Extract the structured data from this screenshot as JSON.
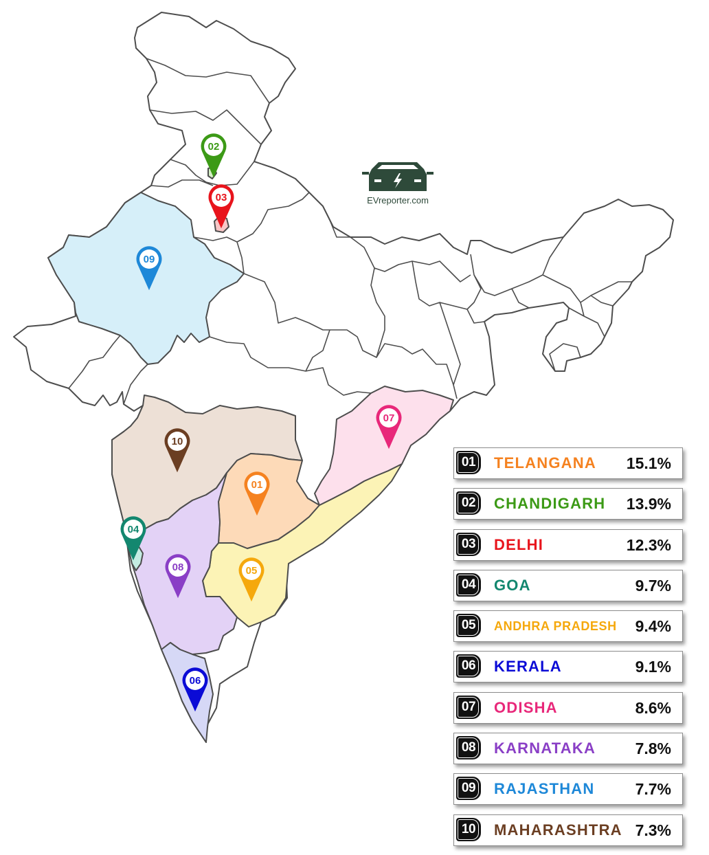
{
  "logo": {
    "text": "EVreporter.com"
  },
  "rankings": [
    {
      "rank": "01",
      "state": "TELANGANA",
      "share": "15.1%",
      "share_value": 15.1,
      "color": "#f58220"
    },
    {
      "rank": "02",
      "state": "CHANDIGARH",
      "share": "13.9%",
      "share_value": 13.9,
      "color": "#3c9a16"
    },
    {
      "rank": "03",
      "state": "DELHI",
      "share": "12.3%",
      "share_value": 12.3,
      "color": "#e8141c"
    },
    {
      "rank": "04",
      "state": "GOA",
      "share": "9.7%",
      "share_value": 9.7,
      "color": "#13876f"
    },
    {
      "rank": "05",
      "state": "ANDHRA PRADESH",
      "share": "9.4%",
      "share_value": 9.4,
      "color": "#f5a80c"
    },
    {
      "rank": "06",
      "state": "KERALA",
      "share": "9.1%",
      "share_value": 9.1,
      "color": "#0b0bd6"
    },
    {
      "rank": "07",
      "state": "ODISHA",
      "share": "8.6%",
      "share_value": 8.6,
      "color": "#e8287a"
    },
    {
      "rank": "08",
      "state": "KARNATAKA",
      "share": "7.8%",
      "share_value": 7.8,
      "color": "#8a3fc6"
    },
    {
      "rank": "09",
      "state": "RAJASTHAN",
      "share": "7.7%",
      "share_value": 7.7,
      "color": "#1e88d8"
    },
    {
      "rank": "10",
      "state": "MAHARASHTRA",
      "share": "7.3%",
      "share_value": 7.3,
      "color": "#6b3e22"
    }
  ],
  "region_fills": {
    "01": "#fddab8",
    "02": "#d5efc6",
    "03": "#f8c6c6",
    "04": "#c4ece2",
    "05": "#fcf3b6",
    "06": "#d6d8f6",
    "07": "#fde0ec",
    "08": "#e3d2f6",
    "09": "#d6eff9",
    "10": "#ede0d6"
  },
  "map_pins": [
    {
      "label": "01"
    },
    {
      "label": "02"
    },
    {
      "label": "03"
    },
    {
      "label": "04"
    },
    {
      "label": "05"
    },
    {
      "label": "06"
    },
    {
      "label": "07"
    },
    {
      "label": "08"
    },
    {
      "label": "09"
    },
    {
      "label": "10"
    }
  ]
}
